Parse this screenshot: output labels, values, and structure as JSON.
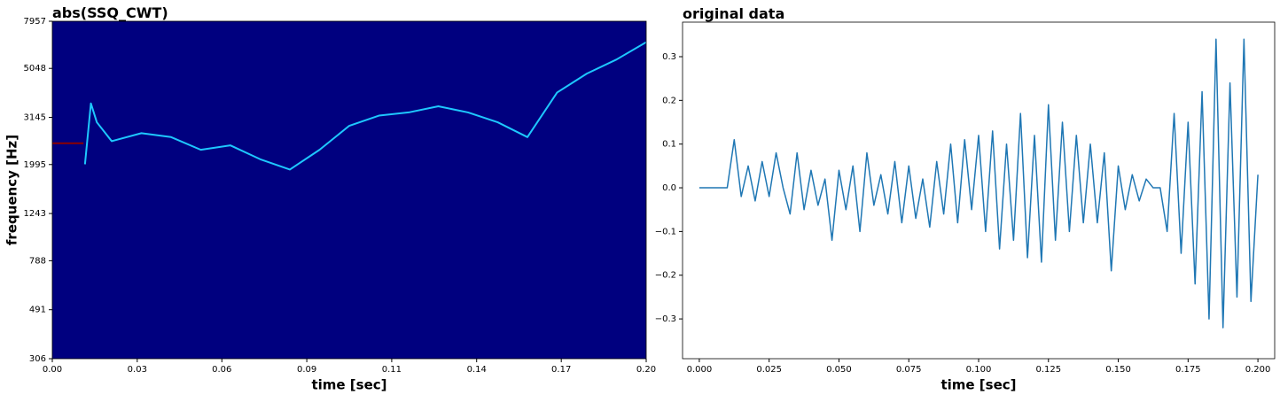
{
  "chart_data": [
    {
      "type": "heatmap",
      "title": "abs(SSQ_CWT)",
      "x_label": "time [sec]",
      "y_label": "frequency [Hz]",
      "background_color": "#00007f",
      "y_log_scale": true,
      "xlim": [
        0,
        0.2
      ],
      "ylim": [
        306,
        7957
      ],
      "xticks": [
        {
          "value": 0,
          "label": "0.00"
        },
        {
          "value": 0.0286,
          "label": "0.03"
        },
        {
          "value": 0.0571,
          "label": "0.06"
        },
        {
          "value": 0.0857,
          "label": "0.09"
        },
        {
          "value": 0.1143,
          "label": "0.11"
        },
        {
          "value": 0.1429,
          "label": "0.14"
        },
        {
          "value": 0.1714,
          "label": "0.17"
        },
        {
          "value": 0.2,
          "label": "0.20"
        }
      ],
      "yticks": [
        306,
        491,
        788,
        1243,
        1995,
        3145,
        5048,
        7957
      ],
      "series": [
        {
          "color": "#8b0000",
          "x": [
            0,
            0.0105
          ],
          "values": [
            2450,
            2450
          ]
        },
        {
          "color": "#1ec8ff",
          "x": [
            0.011,
            0.013,
            0.015,
            0.02,
            0.03,
            0.04,
            0.05,
            0.06,
            0.07,
            0.08,
            0.09,
            0.1,
            0.11,
            0.12,
            0.13,
            0.14,
            0.15,
            0.16,
            0.17,
            0.18,
            0.19,
            0.2
          ],
          "values": [
            2000,
            3600,
            3000,
            2500,
            2700,
            2600,
            2300,
            2400,
            2100,
            1900,
            2300,
            2900,
            3200,
            3300,
            3500,
            3300,
            3000,
            2600,
            4000,
            4800,
            5500,
            6500
          ]
        }
      ]
    },
    {
      "type": "line",
      "title": "original data",
      "x_label": "time [sec]",
      "xlim": [
        -0.006,
        0.206
      ],
      "ylim": [
        -0.391,
        0.379
      ],
      "xticks": [
        {
          "value": 0,
          "label": "0.000"
        },
        {
          "value": 0.025,
          "label": "0.025"
        },
        {
          "value": 0.05,
          "label": "0.050"
        },
        {
          "value": 0.075,
          "label": "0.075"
        },
        {
          "value": 0.1,
          "label": "0.100"
        },
        {
          "value": 0.125,
          "label": "0.125"
        },
        {
          "value": 0.15,
          "label": "0.150"
        },
        {
          "value": 0.175,
          "label": "0.175"
        },
        {
          "value": 0.2,
          "label": "0.200"
        }
      ],
      "yticks": [
        {
          "value": -0.3,
          "label": "−0.3"
        },
        {
          "value": -0.2,
          "label": "−0.2"
        },
        {
          "value": -0.1,
          "label": "−0.1"
        },
        {
          "value": 0,
          "label": "0.0"
        },
        0.1,
        0.2,
        0.3
      ],
      "series": [
        {
          "color": "#1f77b4",
          "x": [
            0,
            0.0025,
            0.005,
            0.0075,
            0.01,
            0.0125,
            0.015,
            0.0175,
            0.02,
            0.0225,
            0.025,
            0.0275,
            0.03,
            0.0325,
            0.035,
            0.0375,
            0.04,
            0.0425,
            0.045,
            0.0475,
            0.05,
            0.0525,
            0.055,
            0.0575,
            0.06,
            0.0625,
            0.065,
            0.0675,
            0.07,
            0.0725,
            0.075,
            0.0775,
            0.08,
            0.0825,
            0.085,
            0.0875,
            0.09,
            0.0925,
            0.095,
            0.0975,
            0.1,
            0.1025,
            0.105,
            0.1075,
            0.11,
            0.1125,
            0.115,
            0.1175,
            0.12,
            0.1225,
            0.125,
            0.1275,
            0.13,
            0.1325,
            0.135,
            0.1375,
            0.14,
            0.1425,
            0.145,
            0.1475,
            0.15,
            0.1525,
            0.155,
            0.1575,
            0.16,
            0.1625,
            0.165,
            0.1675,
            0.17,
            0.1725,
            0.175,
            0.1775,
            0.18,
            0.1825,
            0.185,
            0.1875,
            0.19,
            0.1925,
            0.195,
            0.1975,
            0.2
          ],
          "values": [
            0,
            0,
            0,
            0,
            0,
            0.11,
            -0.02,
            0.05,
            -0.03,
            0.06,
            -0.02,
            0.08,
            0,
            -0.06,
            0.08,
            -0.05,
            0.04,
            -0.04,
            0.02,
            -0.12,
            0.04,
            -0.05,
            0.05,
            -0.1,
            0.08,
            -0.04,
            0.03,
            -0.06,
            0.06,
            -0.08,
            0.05,
            -0.07,
            0.02,
            -0.09,
            0.06,
            -0.06,
            0.1,
            -0.08,
            0.11,
            -0.05,
            0.12,
            -0.1,
            0.13,
            -0.14,
            0.1,
            -0.12,
            0.17,
            -0.16,
            0.12,
            -0.17,
            0.19,
            -0.12,
            0.15,
            -0.1,
            0.12,
            -0.08,
            0.1,
            -0.08,
            0.08,
            -0.19,
            0.05,
            -0.05,
            0.03,
            -0.03,
            0.02,
            0,
            0,
            -0.1,
            0.17,
            -0.15,
            0.15,
            -0.22,
            0.22,
            -0.3,
            0.34,
            -0.32,
            0.24,
            -0.25,
            0.34,
            -0.26,
            0.03
          ]
        }
      ]
    }
  ]
}
